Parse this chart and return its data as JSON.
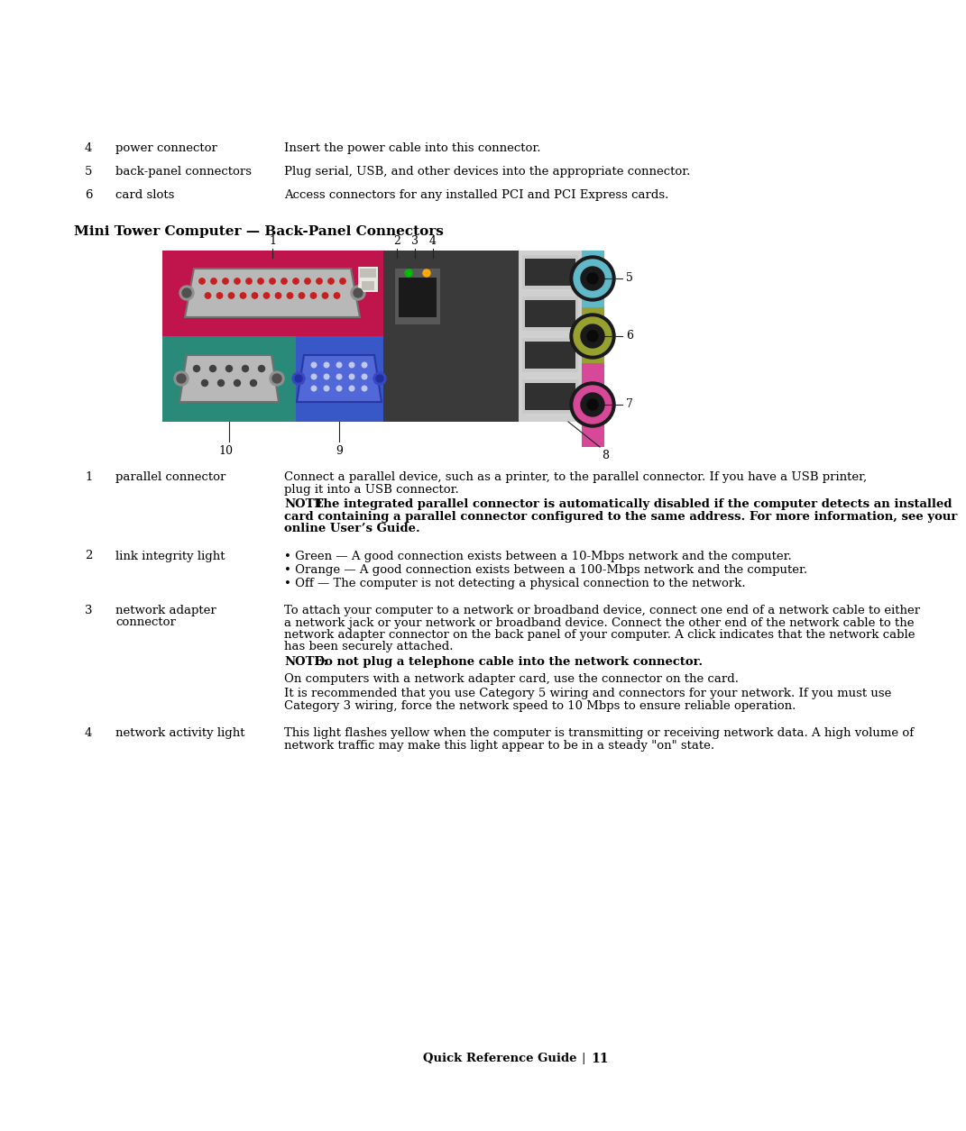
{
  "title": "Mini Tower Computer — Back-Panel Connectors",
  "background_color": "#ffffff",
  "header_items": [
    {
      "num": "4",
      "label": "power connector",
      "desc": "Insert the power cable into this connector."
    },
    {
      "num": "5",
      "label": "back-panel connectors",
      "desc": "Plug serial, USB, and other devices into the appropriate connector."
    },
    {
      "num": "6",
      "label": "card slots",
      "desc": "Access connectors for any installed PCI and PCI Express cards."
    }
  ],
  "body_items": [
    {
      "num": "1",
      "label": "parallel connector",
      "desc": "Connect a parallel device, such as a printer, to the parallel connector. If you have a USB printer, plug it into a USB connector.",
      "note_bold": "NOTE:",
      "note_rest": " The integrated parallel connector is automatically disabled if the computer detects an installed card containing a parallel connector configured to the same address. For more information, see your online ",
      "note_italic": "User’s Guide",
      "note_end": "."
    },
    {
      "num": "2",
      "label": "link integrity light",
      "bullets": [
        "Green — A good connection exists between a 10-Mbps network and the computer.",
        "Orange — A good connection exists between a 100-Mbps network and the computer.",
        "Off — The computer is not detecting a physical connection to the network."
      ]
    },
    {
      "num": "3",
      "label": "network adapter\nconnector",
      "desc": "To attach your computer to a network or broadband device, connect one end of a network cable to either a network jack or your network or broadband device. Connect the other end of the network cable to the network adapter connector on the back panel of your computer. A click indicates that the network cable has been securely attached.",
      "note_bold": "NOTE:",
      "note_rest": " Do not plug a telephone cable into the network connector.",
      "extra": "On computers with a network adapter card, use the connector on the card.",
      "extra2": "It is recommended that you use Category 5 wiring and connectors for your network. If you must use Category 3 wiring, force the network speed to 10 Mbps to ensure reliable operation."
    },
    {
      "num": "4",
      "label": "network activity light",
      "desc": "This light flashes yellow when the computer is transmitting or receiving network data. A high volume of network traffic may make this light appear to be in a steady \"on\" state."
    }
  ],
  "footer": "Quick Reference Guide",
  "page_num": "11",
  "diagram": {
    "crimson": "#c0144c",
    "teal": "#2a8a7a",
    "blue": "#3858c8",
    "dark": "#3a3a3a",
    "lightblue": "#60b8c8",
    "olive": "#98a030",
    "pink": "#d84898",
    "gray_bg": "#d0d0d0"
  }
}
